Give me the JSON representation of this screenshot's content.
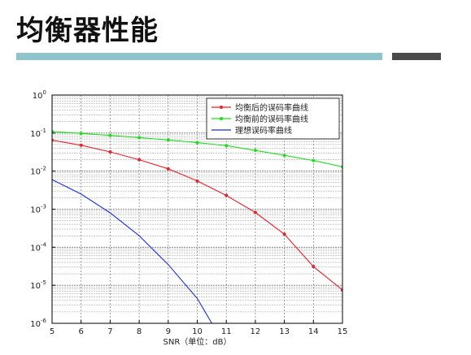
{
  "slide": {
    "title": "均衡器性能",
    "accent_colors": {
      "teal": "#8fc4cc",
      "dark": "#4a4a4a"
    }
  },
  "chart_data": {
    "type": "line",
    "title": "",
    "xlabel": "SNR（单位：dB）",
    "ylabel": "",
    "xlim": [
      5,
      15
    ],
    "ylim": [
      1e-06,
      1
    ],
    "yscale": "log",
    "grid": true,
    "legend_position": "top-right",
    "x_ticks": [
      5,
      6,
      7,
      8,
      9,
      10,
      11,
      12,
      13,
      14,
      15
    ],
    "y_ticks": [
      {
        "base": "10",
        "exp": "0"
      },
      {
        "base": "10",
        "exp": "-1"
      },
      {
        "base": "10",
        "exp": "-2"
      },
      {
        "base": "10",
        "exp": "-3"
      },
      {
        "base": "10",
        "exp": "-4"
      },
      {
        "base": "10",
        "exp": "-5"
      },
      {
        "base": "10",
        "exp": "-6"
      }
    ],
    "series": [
      {
        "name": "均衡后的误码率曲线",
        "color": "#e8212b",
        "marker": "dot",
        "x": [
          5,
          6,
          7,
          8,
          9,
          10,
          11,
          12,
          13,
          14,
          15
        ],
        "y": [
          0.065,
          0.048,
          0.032,
          0.02,
          0.0115,
          0.0055,
          0.0023,
          0.00082,
          0.00022,
          3.1e-05,
          7.5e-06
        ]
      },
      {
        "name": "均衡前的误码率曲线",
        "color": "#22dd22",
        "marker": "dot",
        "x": [
          5,
          6,
          7,
          8,
          9,
          10,
          11,
          12,
          13,
          14,
          15
        ],
        "y": [
          0.11,
          0.098,
          0.087,
          0.076,
          0.066,
          0.056,
          0.047,
          0.035,
          0.026,
          0.019,
          0.013
        ]
      },
      {
        "name": "理想误码率曲线",
        "color": "#1a2ee0",
        "marker": "none",
        "x": [
          5,
          6,
          7,
          8,
          9,
          10,
          10.5
        ],
        "y": [
          0.006,
          0.0025,
          0.0008,
          0.0002,
          3.5e-05,
          4.5e-06,
          1e-06
        ]
      }
    ]
  }
}
